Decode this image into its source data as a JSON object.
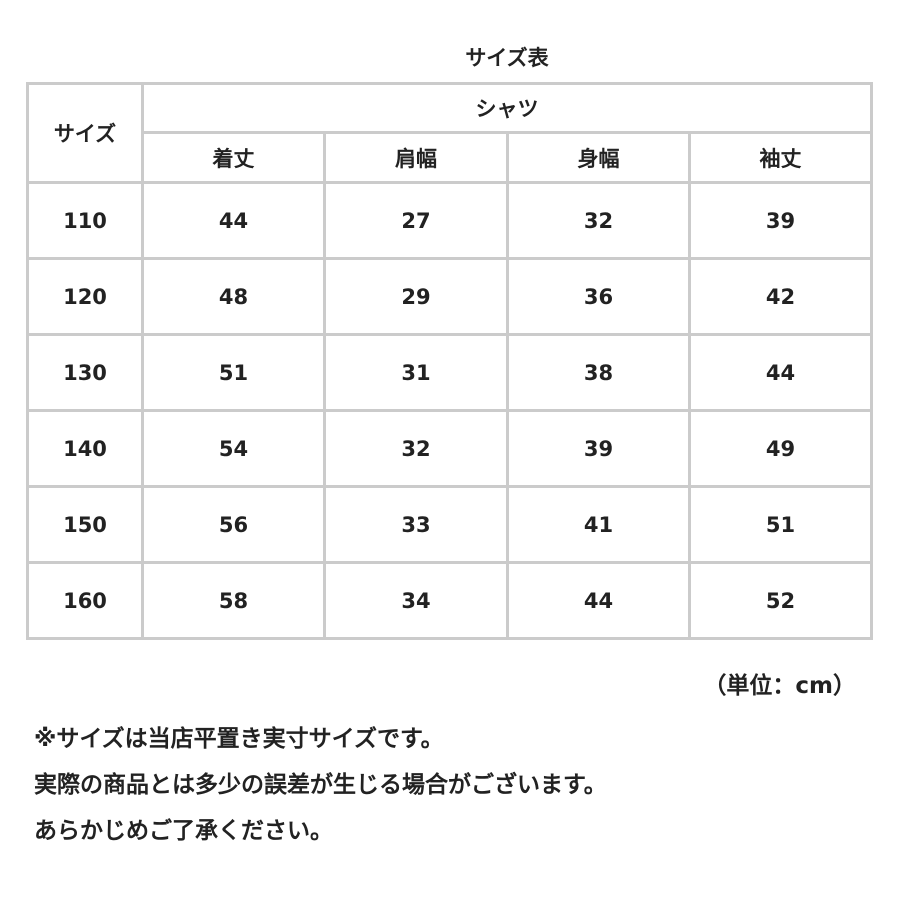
{
  "title": "サイズ表",
  "table": {
    "size_header": "サイズ",
    "group_header": "シャツ",
    "columns": [
      "着丈",
      "肩幅",
      "身幅",
      "袖丈"
    ],
    "rows": [
      {
        "size": "110",
        "values": [
          "44",
          "27",
          "32",
          "39"
        ]
      },
      {
        "size": "120",
        "values": [
          "48",
          "29",
          "36",
          "42"
        ]
      },
      {
        "size": "130",
        "values": [
          "51",
          "31",
          "38",
          "44"
        ]
      },
      {
        "size": "140",
        "values": [
          "54",
          "32",
          "39",
          "49"
        ]
      },
      {
        "size": "150",
        "values": [
          "56",
          "33",
          "41",
          "51"
        ]
      },
      {
        "size": "160",
        "values": [
          "58",
          "34",
          "44",
          "52"
        ]
      }
    ]
  },
  "unit": "（単位：cm）",
  "notes": [
    "※サイズは当店平置き実寸サイズです。",
    "実際の商品とは多少の誤差が生じる場合がございます。",
    "あらかじめご了承ください。"
  ]
}
